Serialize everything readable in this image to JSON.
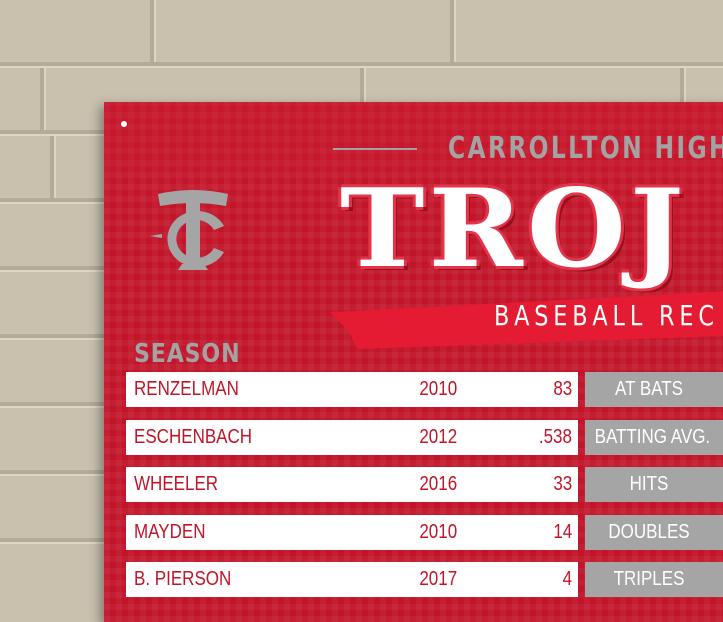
{
  "board": {
    "school": "CARROLLTON HIGH",
    "title": "TROJ",
    "subtitle": "BASEBALL REC",
    "logo": "TC",
    "section": "SEASON",
    "colors": {
      "red": "#c2152a",
      "gray": "#a5a5a5",
      "ribbon": "#e41b33"
    },
    "records": [
      {
        "name": "RENZELMAN",
        "year": "2010",
        "value": "83",
        "stat": "AT BATS"
      },
      {
        "name": "ESCHENBACH",
        "year": "2012",
        "value": ".538",
        "stat": "BATTING AVG."
      },
      {
        "name": "WHEELER",
        "year": "2016",
        "value": "33",
        "stat": "HITS"
      },
      {
        "name": "MAYDEN",
        "year": "2010",
        "value": "14",
        "stat": "DOUBLES"
      },
      {
        "name": "B. PIERSON",
        "year": "2017",
        "value": "4",
        "stat": "TRIPLES"
      }
    ]
  }
}
